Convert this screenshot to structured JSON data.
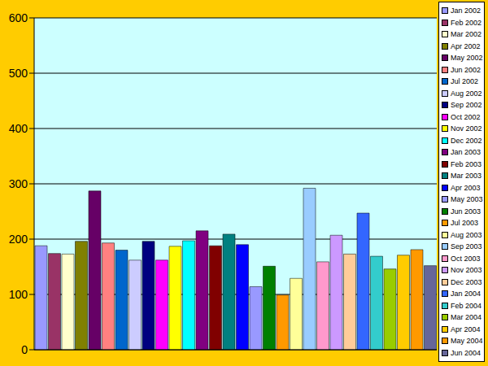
{
  "chart_data": {
    "type": "bar",
    "categories": [
      "Jan 2002",
      "Feb 2002",
      "Mar 2002",
      "Apr 2002",
      "May 2002",
      "Jun 2002",
      "Jul 2002",
      "Aug 2002",
      "Sep 2002",
      "Oct 2002",
      "Nov 2002",
      "Dec 2002",
      "Jan 2003",
      "Feb 2003",
      "Mar 2003",
      "Apr 2003",
      "May 2003",
      "Jun 2003",
      "Jul 2003",
      "Aug 2003",
      "Sep 2003",
      "Oct 2003",
      "Nov 2003",
      "Dec 2003",
      "Jan 2004",
      "Feb 2004",
      "Mar 2004",
      "Apr 2004",
      "May 2004",
      "Jun 2004"
    ],
    "values": [
      188,
      174,
      173,
      196,
      287,
      193,
      180,
      162,
      196,
      162,
      187,
      197,
      215,
      188,
      209,
      190,
      114,
      151,
      99,
      129,
      292,
      159,
      207,
      173,
      247,
      169,
      146,
      171,
      181,
      152
    ],
    "colors": [
      "#9999FF",
      "#993366",
      "#FFFFCC",
      "#808000",
      "#660066",
      "#FF8080",
      "#0066CC",
      "#CCCCFF",
      "#000080",
      "#FF00FF",
      "#FFFF00",
      "#00FFFF",
      "#800080",
      "#800000",
      "#008080",
      "#0000FF",
      "#9999FF",
      "#008000",
      "#FF9900",
      "#FFFF99",
      "#99CCFF",
      "#FF99CC",
      "#CC99FF",
      "#FFCC99",
      "#3366FF",
      "#33CCCC",
      "#99CC00",
      "#FFCC00",
      "#FF9900",
      "#666699"
    ],
    "ylim": [
      0,
      600
    ],
    "yticks": [
      0,
      100,
      200,
      300,
      400,
      500,
      600
    ],
    "grid": true,
    "legend": "right",
    "tick_labels": "y"
  }
}
